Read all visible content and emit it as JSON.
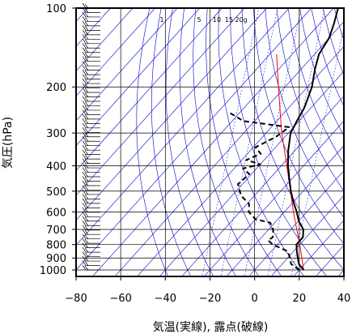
{
  "chart_data": {
    "type": "skew-t",
    "xlabel": "気温(実線), 露点(破線)",
    "ylabel": "気圧(hPa)",
    "x_ticks": [
      -80,
      -60,
      -40,
      -20,
      0,
      20,
      40
    ],
    "x_tick_labels": [
      "−80",
      "−60",
      "−40",
      "−20",
      "0",
      "20",
      "40"
    ],
    "y_ticks": [
      1000,
      900,
      800,
      700,
      600,
      500,
      400,
      300,
      200,
      100
    ],
    "y_tick_labels": [
      "1000",
      "900",
      "800",
      "700",
      "600",
      "500",
      "400",
      "300",
      "200",
      "100"
    ],
    "xlim": [
      -80,
      40
    ],
    "ylim": [
      1050,
      100
    ],
    "y_scale": "log",
    "mixing_ratio_labels": [
      "1",
      "5",
      "10",
      "15",
      "20g"
    ],
    "colors": {
      "temperature": "#000000",
      "dewpoint": "#000000",
      "parcel": "#ff0000",
      "adiabats": "#0000cc",
      "grid": "#000000",
      "wind_barbs": "#000000"
    },
    "series": [
      {
        "name": "temperature",
        "style": "solid",
        "points": [
          {
            "p": 1000,
            "t": 22.0
          },
          {
            "p": 950,
            "t": 17.5
          },
          {
            "p": 900,
            "t": 14.5
          },
          {
            "p": 850,
            "t": 11.5
          },
          {
            "p": 800,
            "t": 8.5
          },
          {
            "p": 750,
            "t": 8.5
          },
          {
            "p": 700,
            "t": 5.5
          },
          {
            "p": 650,
            "t": 0.0
          },
          {
            "p": 600,
            "t": -4.5
          },
          {
            "p": 550,
            "t": -10.0
          },
          {
            "p": 500,
            "t": -15.5
          },
          {
            "p": 450,
            "t": -21.0
          },
          {
            "p": 400,
            "t": -27.0
          },
          {
            "p": 350,
            "t": -33.0
          },
          {
            "p": 300,
            "t": -39.0
          },
          {
            "p": 270,
            "t": -41.0
          },
          {
            "p": 240,
            "t": -43.0
          },
          {
            "p": 200,
            "t": -48.0
          },
          {
            "p": 170,
            "t": -54.0
          },
          {
            "p": 150,
            "t": -58.0
          },
          {
            "p": 130,
            "t": -60.0
          },
          {
            "p": 115,
            "t": -63.5
          },
          {
            "p": 100,
            "t": -68.0
          }
        ]
      },
      {
        "name": "dewpoint",
        "style": "dashed",
        "points": [
          {
            "p": 1000,
            "t": 20.0
          },
          {
            "p": 950,
            "t": 14.0
          },
          {
            "p": 900,
            "t": 11.0
          },
          {
            "p": 850,
            "t": 7.5
          },
          {
            "p": 800,
            "t": -2.0
          },
          {
            "p": 770,
            "t": -6.0
          },
          {
            "p": 750,
            "t": -5.0
          },
          {
            "p": 700,
            "t": -8.0
          },
          {
            "p": 660,
            "t": -12.0
          },
          {
            "p": 640,
            "t": -20.0
          },
          {
            "p": 600,
            "t": -26.0
          },
          {
            "p": 560,
            "t": -29.0
          },
          {
            "p": 520,
            "t": -36.0
          },
          {
            "p": 470,
            "t": -42.0
          },
          {
            "p": 430,
            "t": -41.0
          },
          {
            "p": 410,
            "t": -46.0
          },
          {
            "p": 395,
            "t": -40.0
          },
          {
            "p": 380,
            "t": -48.0
          },
          {
            "p": 360,
            "t": -44.0
          },
          {
            "p": 340,
            "t": -49.0
          },
          {
            "p": 310,
            "t": -44.0
          },
          {
            "p": 285,
            "t": -42.0
          },
          {
            "p": 270,
            "t": -65.0
          },
          {
            "p": 250,
            "t": -75.0
          }
        ]
      }
    ],
    "parcel_line": [
      {
        "p": 1000,
        "t": 22.0
      },
      {
        "p": 800,
        "t": 10.0
      },
      {
        "p": 600,
        "t": -6.0
      },
      {
        "p": 400,
        "t": -27.5
      },
      {
        "p": 300,
        "t": -43.0
      },
      {
        "p": 250,
        "t": -52.0
      },
      {
        "p": 200,
        "t": -63.0
      },
      {
        "p": 150,
        "t": -77.0
      }
    ],
    "wind_barbs": {
      "count": 60,
      "p_range": [
        1000,
        100
      ]
    }
  }
}
